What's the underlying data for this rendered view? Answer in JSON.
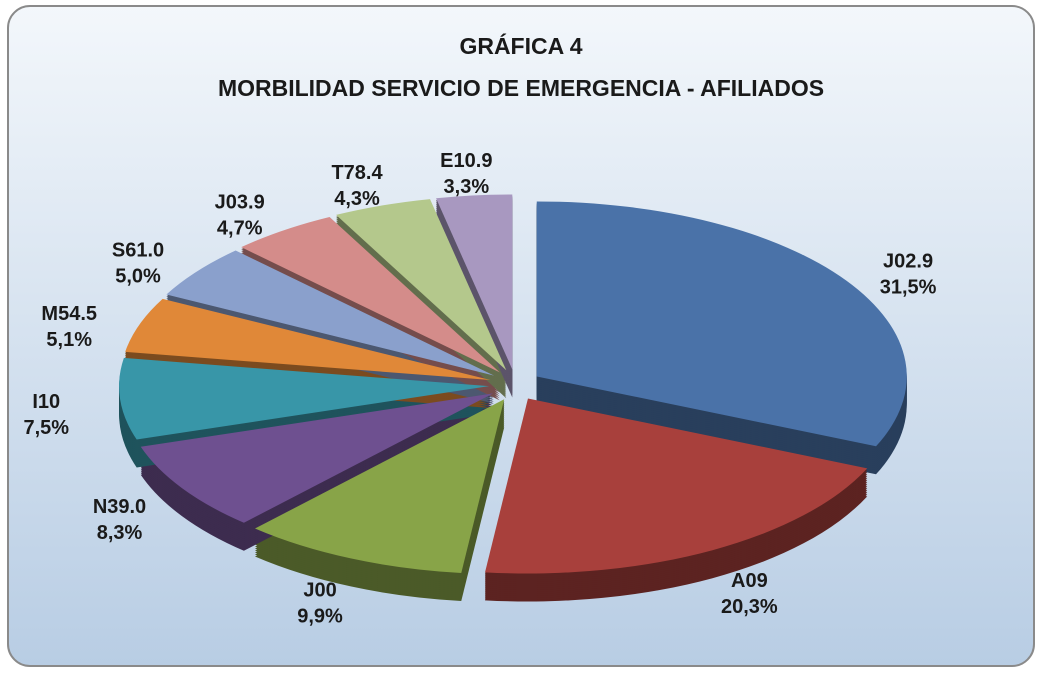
{
  "chart_data": {
    "type": "pie",
    "title": "GRÁFICA 4",
    "subtitle": "MORBILIDAD SERVICIO DE EMERGENCIA - AFILIADOS",
    "categories": [
      "J02.9",
      "A09",
      "J00",
      "N39.0",
      "I10",
      "M54.5",
      "S61.0",
      "J03.9",
      "T78.4",
      "E10.9"
    ],
    "values": [
      31.5,
      20.3,
      9.9,
      8.3,
      7.5,
      5.1,
      5.0,
      4.7,
      4.3,
      3.3
    ],
    "value_labels": [
      "31,5%",
      "20,3%",
      "9,9%",
      "8,3%",
      "7,5%",
      "5,1%",
      "5,0%",
      "4,7%",
      "4,3%",
      "3,3%"
    ],
    "colors": [
      "#4a72a8",
      "#a8403c",
      "#88a448",
      "#6e5090",
      "#3896a8",
      "#e08838",
      "#8aa0cc",
      "#d48c8a",
      "#b4c88c",
      "#a898c0"
    ]
  }
}
